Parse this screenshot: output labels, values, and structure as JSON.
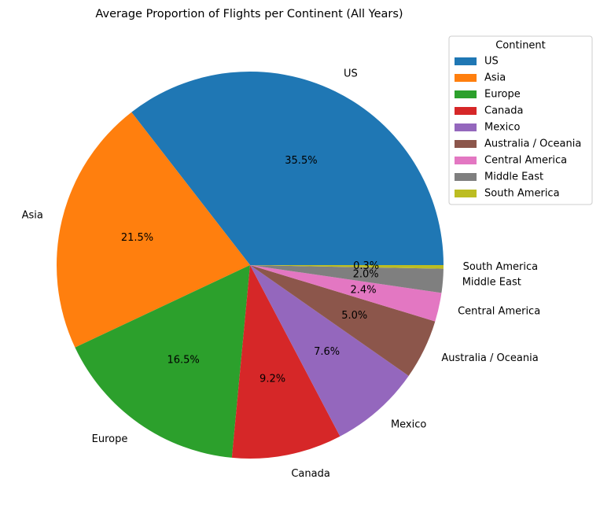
{
  "chart_data": {
    "type": "pie",
    "title": "Average Proportion of Flights per Continent (All Years)",
    "categories": [
      "US",
      "Asia",
      "Europe",
      "Canada",
      "Mexico",
      "Australia / Oceania",
      "Central America",
      "Middle East",
      "South America"
    ],
    "values": [
      35.5,
      21.5,
      16.5,
      9.2,
      7.6,
      5.0,
      2.4,
      2.0,
      0.3
    ],
    "percent_labels": [
      "35.5%",
      "21.5%",
      "16.5%",
      "9.2%",
      "7.6%",
      "5.0%",
      "2.4%",
      "2.0%",
      "0.3%"
    ],
    "colors": [
      "#1f77b4",
      "#ff7f0e",
      "#2ca02c",
      "#d62728",
      "#9467bd",
      "#8c564b",
      "#e377c2",
      "#7f7f7f",
      "#bcbd22"
    ],
    "start_angle_deg": 0,
    "direction": "counterclockwise",
    "legend": {
      "title": "Continent",
      "placement": "top-right"
    }
  }
}
